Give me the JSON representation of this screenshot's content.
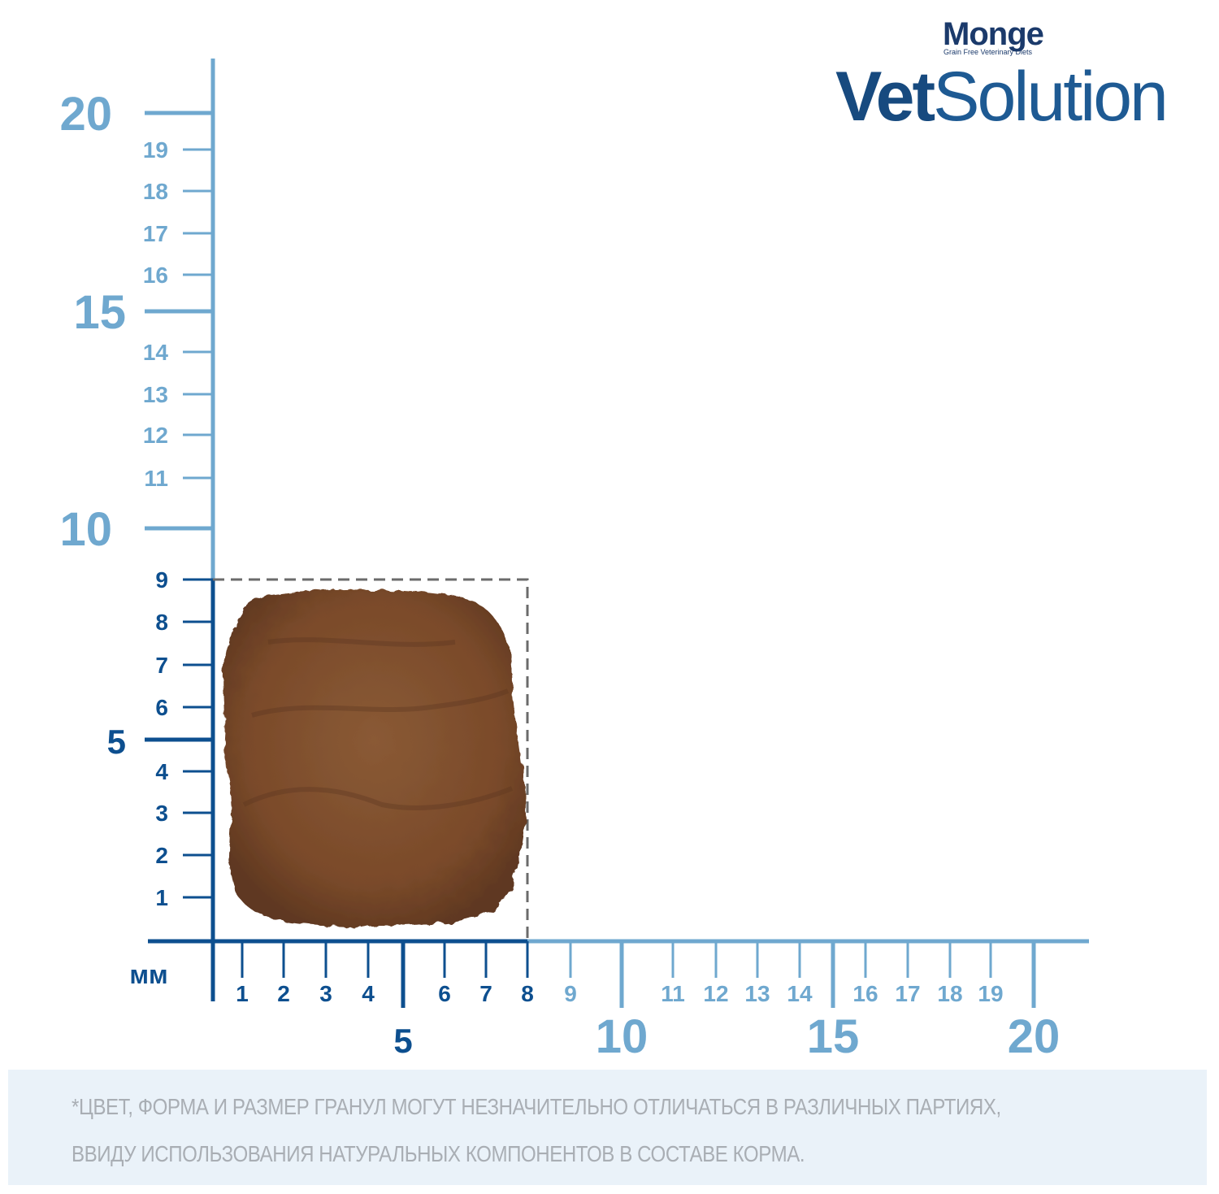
{
  "brand": {
    "maker": "Monge",
    "tagline": "Grain Free Veterinary Diets",
    "product_bold": "Vet",
    "product_light": "Solution"
  },
  "unit_label": "мм",
  "granule_size_mm": {
    "width": 8,
    "height": 9
  },
  "colors": {
    "dark_blue": "#0d4f8f",
    "light_blue": "#6fa8cf",
    "granule_brown": "#8a5a35",
    "dashed": "#6b6b6b",
    "footer_bg": "#eaf2f9"
  },
  "x_axis": {
    "minor_labels": [
      "1",
      "2",
      "3",
      "4",
      "6",
      "7",
      "8",
      "9",
      "11",
      "12",
      "13",
      "14",
      "16",
      "17",
      "18",
      "19"
    ],
    "major_labels": [
      "5",
      "10",
      "15",
      "20"
    ]
  },
  "y_axis": {
    "minor_labels": [
      "1",
      "2",
      "3",
      "4",
      "6",
      "7",
      "8",
      "9",
      "11",
      "12",
      "13",
      "14",
      "16",
      "17",
      "18",
      "19"
    ],
    "major_labels": [
      "5",
      "10",
      "15",
      "20"
    ]
  },
  "footer": {
    "line1": "*ЦВЕТ, ФОРМА И РАЗМЕР ГРАНУЛ МОГУТ НЕЗНАЧИТЕЛЬНО ОТЛИЧАТЬСЯ В РАЗЛИЧНЫХ ПАРТИЯХ,",
    "line2": "ВВИДУ ИСПОЛЬЗОВАНИЯ НАТУРАЛЬНЫХ КОМПОНЕНТОВ В СОСТАВЕ КОРМА."
  }
}
